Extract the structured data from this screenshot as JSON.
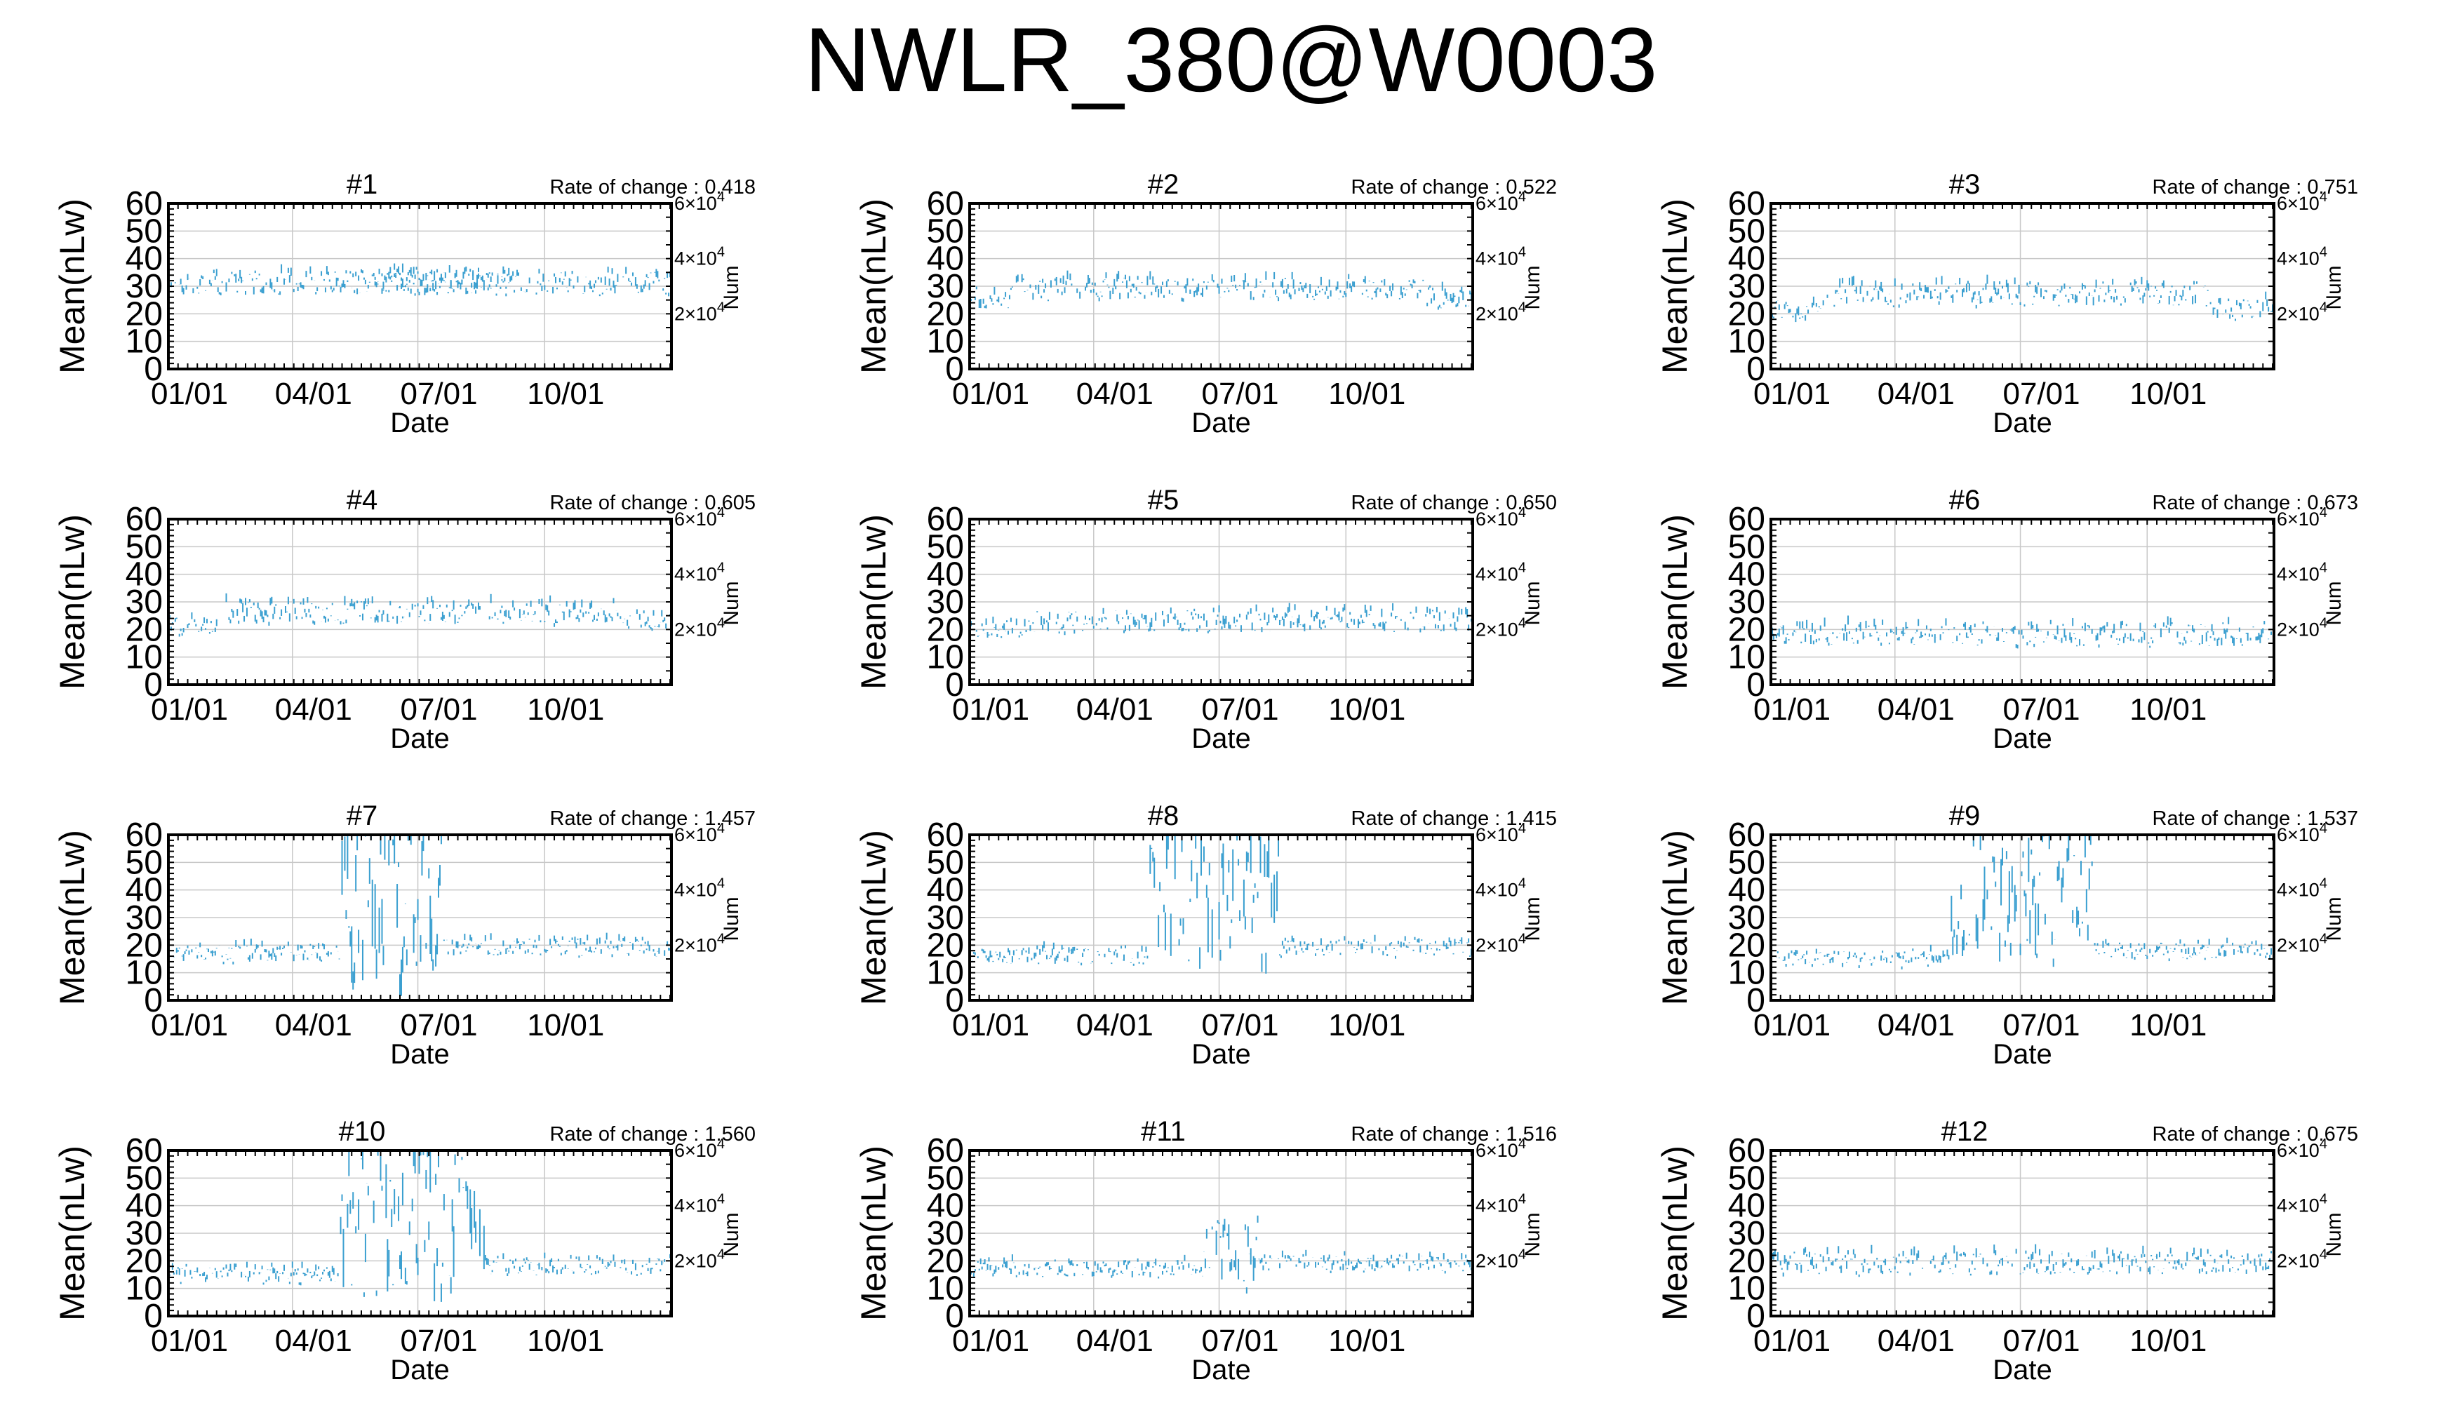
{
  "title": "NWLR_380@W0003",
  "shared": {
    "xlabel": "Date",
    "ylabel": "Mean(nLw)",
    "y2label": "Num",
    "rate_prefix": "Rate of change : ",
    "x_ticks": [
      "01/01",
      "04/01",
      "07/01",
      "10/01"
    ],
    "x_tick_days": [
      0,
      90,
      181,
      273
    ],
    "x_range_days": [
      0,
      365
    ],
    "y_ticks": [
      "0",
      "10",
      "20",
      "30",
      "40",
      "50",
      "60"
    ],
    "ylim": [
      0,
      60
    ],
    "y2_ticks": [
      {
        "value": 20000,
        "mantissa": "2",
        "exp": "4"
      },
      {
        "value": 40000,
        "mantissa": "4",
        "exp": "4"
      },
      {
        "value": 60000,
        "mantissa": "6",
        "exp": "4"
      }
    ],
    "y2lim": [
      0,
      60000
    ],
    "grid": true,
    "series_color": "#3a9fd0"
  },
  "chart_data": [
    {
      "type": "scatter",
      "title": "#1",
      "rate_of_change": "0.418",
      "segments": [
        {
          "from": 0,
          "to": 365,
          "mean": 31,
          "spread": 4
        },
        {
          "from": 150,
          "to": 250,
          "mean": 32,
          "spread": 4
        }
      ]
    },
    {
      "type": "scatter",
      "title": "#2",
      "rate_of_change": "0.522",
      "segments": [
        {
          "from": 0,
          "to": 30,
          "mean": 25,
          "spread": 4
        },
        {
          "from": 30,
          "to": 330,
          "mean": 29,
          "spread": 4
        },
        {
          "from": 330,
          "to": 365,
          "mean": 26,
          "spread": 4
        }
      ]
    },
    {
      "type": "scatter",
      "title": "#3",
      "rate_of_change": "0.751",
      "segments": [
        {
          "from": 0,
          "to": 40,
          "mean": 21,
          "spread": 4
        },
        {
          "from": 40,
          "to": 320,
          "mean": 27,
          "spread": 4
        },
        {
          "from": 320,
          "to": 365,
          "mean": 22,
          "spread": 4
        }
      ]
    },
    {
      "type": "scatter",
      "title": "#4",
      "rate_of_change": "0.605",
      "segments": [
        {
          "from": 0,
          "to": 40,
          "mean": 21,
          "spread": 3
        },
        {
          "from": 40,
          "to": 330,
          "mean": 26,
          "spread": 4
        },
        {
          "from": 330,
          "to": 365,
          "mean": 23,
          "spread": 3
        }
      ]
    },
    {
      "type": "scatter",
      "title": "#5",
      "rate_of_change": "0.650",
      "segments": [
        {
          "from": 0,
          "to": 40,
          "mean": 20,
          "spread": 3
        },
        {
          "from": 40,
          "to": 365,
          "mean": 23,
          "spread": 4
        }
      ]
    },
    {
      "type": "scatter",
      "title": "#6",
      "rate_of_change": "0.673",
      "segments": [
        {
          "from": 0,
          "to": 365,
          "mean": 18,
          "spread": 4
        }
      ]
    },
    {
      "type": "scatter",
      "title": "#7",
      "rate_of_change": "1.457",
      "segments": [
        {
          "from": 0,
          "to": 125,
          "mean": 17,
          "spread": 3
        },
        {
          "from": 125,
          "to": 200,
          "mean": 30,
          "spread": 30
        },
        {
          "from": 200,
          "to": 365,
          "mean": 19,
          "spread": 3
        }
      ]
    },
    {
      "type": "scatter",
      "title": "#8",
      "rate_of_change": "1.415",
      "segments": [
        {
          "from": 0,
          "to": 130,
          "mean": 16,
          "spread": 3
        },
        {
          "from": 130,
          "to": 225,
          "mean": 38,
          "spread": 24
        },
        {
          "from": 225,
          "to": 365,
          "mean": 19,
          "spread": 3
        }
      ]
    },
    {
      "type": "scatter",
      "title": "#9",
      "rate_of_change": "1.537",
      "segments": [
        {
          "from": 0,
          "to": 130,
          "mean": 15,
          "spread": 3
        },
        {
          "from": 130,
          "to": 235,
          "mean": 38,
          "spread": 24
        },
        {
          "from": 235,
          "to": 365,
          "mean": 18,
          "spread": 3
        }
      ]
    },
    {
      "type": "scatter",
      "title": "#10",
      "rate_of_change": "1.560",
      "segments": [
        {
          "from": 0,
          "to": 125,
          "mean": 15,
          "spread": 3
        },
        {
          "from": 125,
          "to": 230,
          "mean": 33,
          "spread": 28
        },
        {
          "from": 230,
          "to": 365,
          "mean": 18,
          "spread": 3
        }
      ]
    },
    {
      "type": "scatter",
      "title": "#11",
      "rate_of_change": "1.516",
      "segments": [
        {
          "from": 0,
          "to": 170,
          "mean": 17,
          "spread": 3
        },
        {
          "from": 170,
          "to": 210,
          "mean": 22,
          "spread": 12
        },
        {
          "from": 210,
          "to": 365,
          "mean": 19,
          "spread": 3
        }
      ]
    },
    {
      "type": "scatter",
      "title": "#12",
      "rate_of_change": "0.675",
      "segments": [
        {
          "from": 0,
          "to": 365,
          "mean": 19,
          "spread": 4
        }
      ]
    }
  ]
}
